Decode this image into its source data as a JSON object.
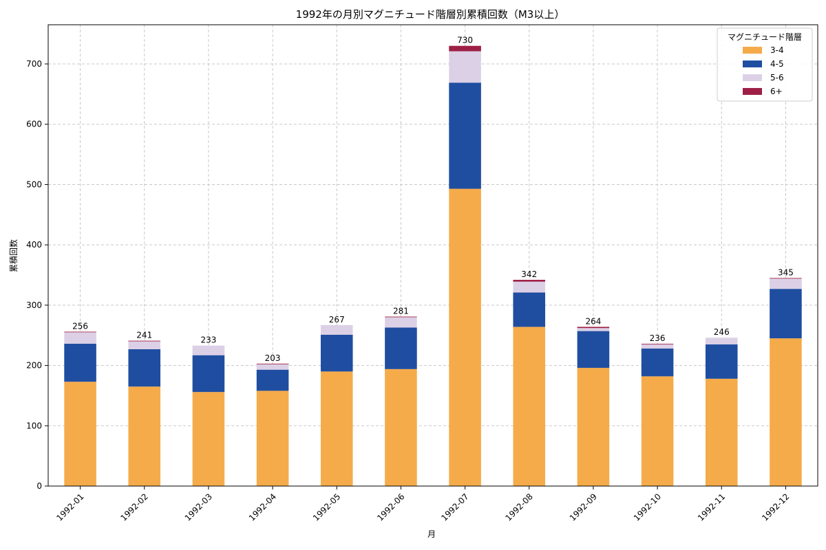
{
  "chart_data": {
    "type": "bar",
    "stacked": true,
    "title": "1992年の月別マグニチュード階層別累積回数（M3以上）",
    "xlabel": "月",
    "ylabel": "累積回数",
    "ylim": [
      0,
      765
    ],
    "yticks": [
      0,
      100,
      200,
      300,
      400,
      500,
      600,
      700
    ],
    "grid": true,
    "legend": {
      "title": "マグニチュード階層",
      "position": "top-right"
    },
    "categories": [
      "1992-01",
      "1992-02",
      "1992-03",
      "1992-04",
      "1992-05",
      "1992-06",
      "1992-07",
      "1992-08",
      "1992-09",
      "1992-10",
      "1992-11",
      "1992-12"
    ],
    "series": [
      {
        "name": "3-4",
        "color": "#f5ab4a",
        "values": [
          173,
          165,
          156,
          158,
          190,
          194,
          493,
          264,
          196,
          182,
          178,
          245
        ]
      },
      {
        "name": "4-5",
        "color": "#1f4ea1",
        "values": [
          63,
          62,
          61,
          35,
          61,
          69,
          176,
          57,
          61,
          46,
          57,
          82
        ]
      },
      {
        "name": "5-6",
        "color": "#dcd0e6",
        "values": [
          19,
          13,
          16,
          9,
          16,
          17,
          52,
          18,
          5,
          7,
          11,
          17
        ]
      },
      {
        "name": "6+",
        "color": "#9e1f45",
        "values": [
          1,
          1,
          0,
          1,
          0,
          1,
          9,
          3,
          2,
          1,
          0,
          1
        ]
      }
    ],
    "totals": [
      256,
      241,
      233,
      203,
      267,
      281,
      730,
      342,
      264,
      236,
      246,
      345
    ]
  }
}
